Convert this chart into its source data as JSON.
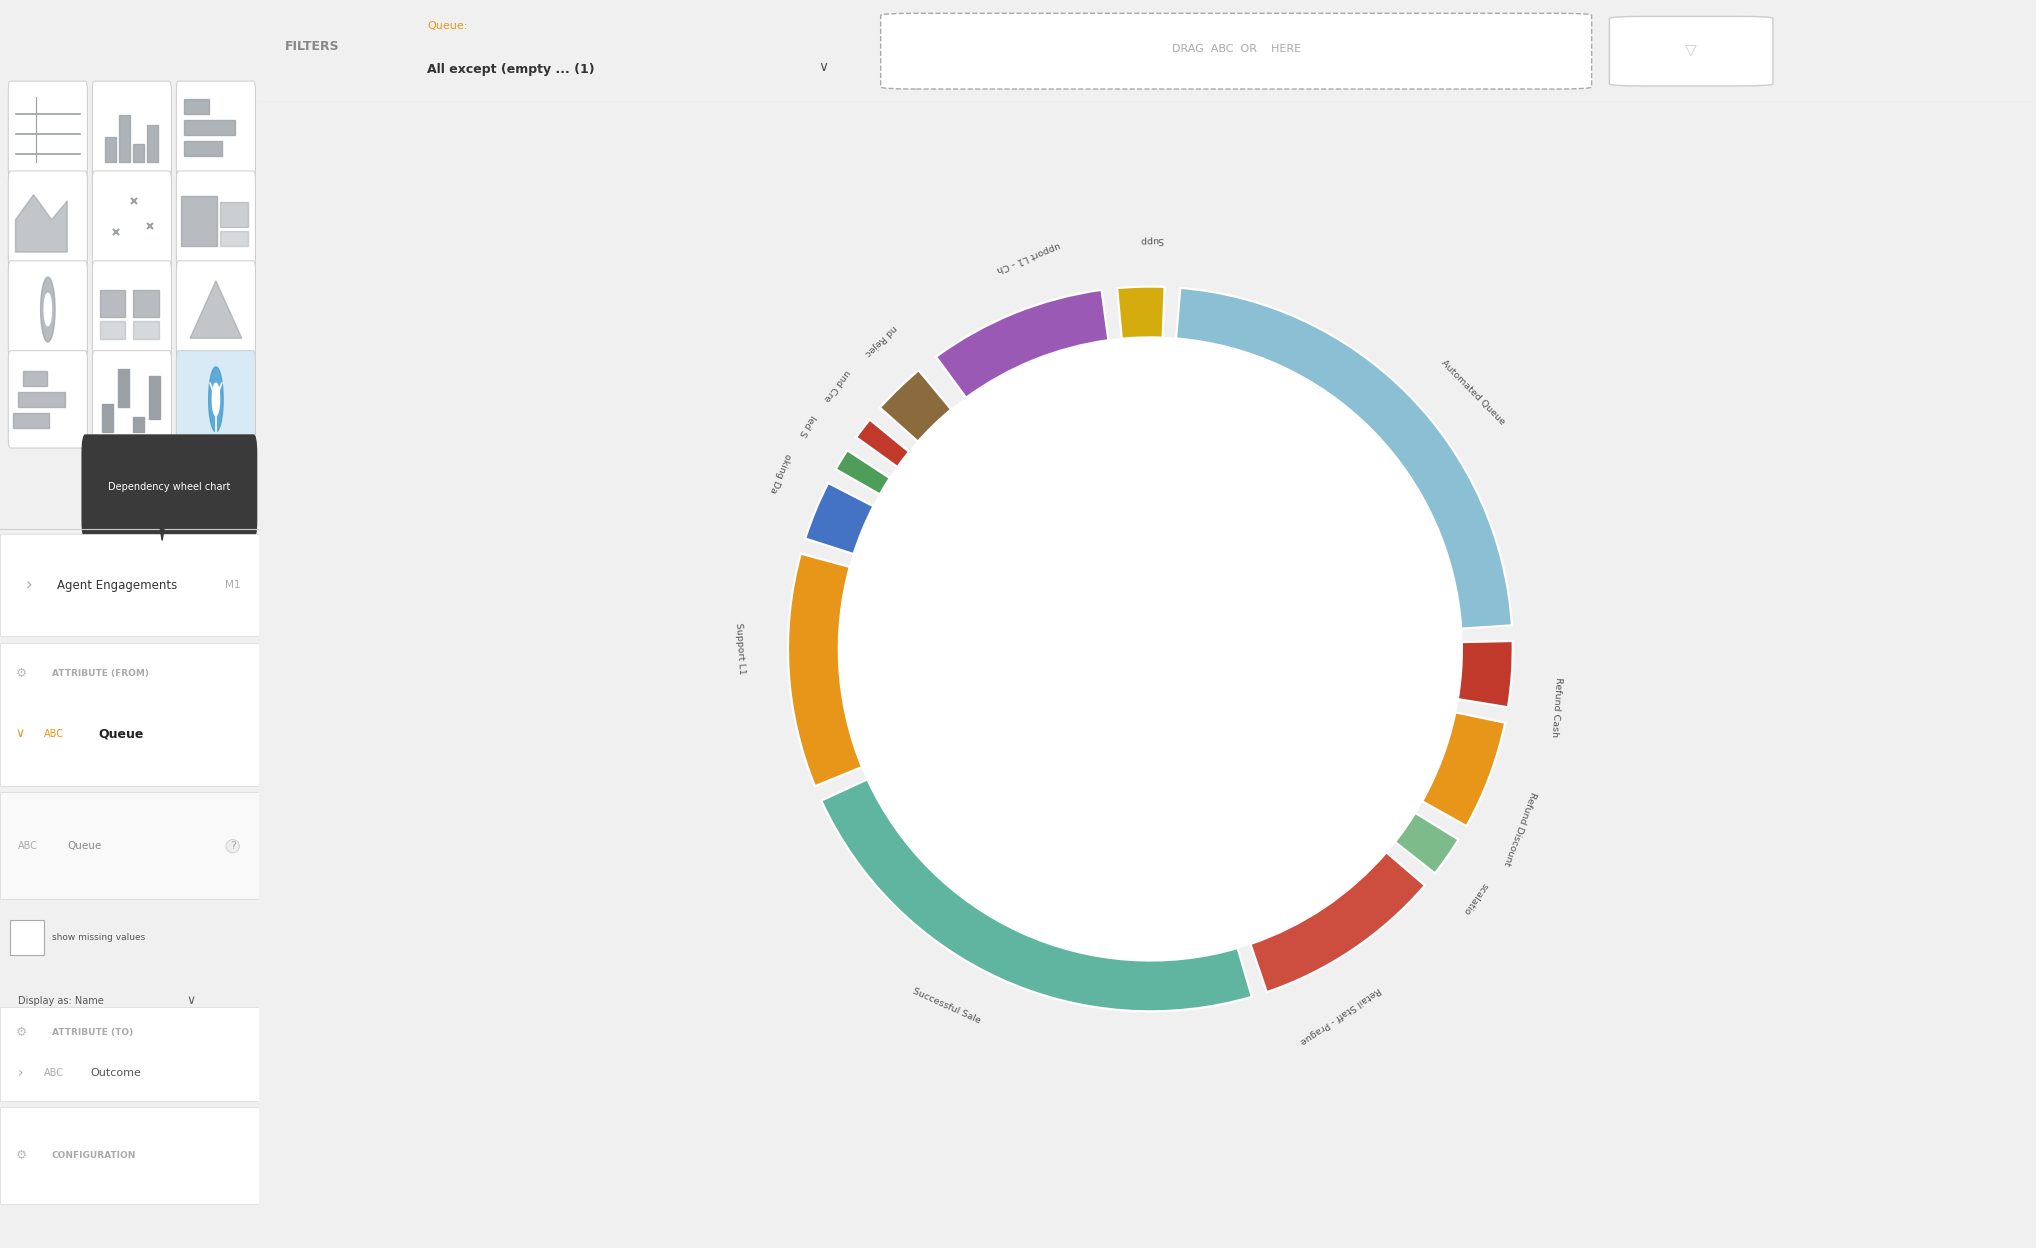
{
  "bg_color": "#f0f0f0",
  "panel_color": "#f0f2f5",
  "white": "#ffffff",
  "border_color": "#dddddd",
  "text_dark": "#333333",
  "text_gray": "#888888",
  "text_light": "#aaaaaa",
  "orange_accent": "#E8961A",
  "tooltip_bg": "#333333",
  "segments": [
    {
      "name": "Supp",
      "color": "#D4AC0D",
      "cs": 354,
      "ce": 363
    },
    {
      "name": "upport L1 - Ch",
      "color": "#9B59B6",
      "cs": 323,
      "ce": 353
    },
    {
      "name": "nd Rejec",
      "color": "#8B6A3E",
      "cs": 311,
      "ce": 321
    },
    {
      "name": "und Cre",
      "color": "#C0392B",
      "cs": 305,
      "ce": 310
    },
    {
      "name": "led S",
      "color": "#4E9E5A",
      "cs": 299,
      "ce": 304
    },
    {
      "name": "oking Da",
      "color": "#4472C4",
      "cs": 287,
      "ce": 298
    },
    {
      "name": "Support L1",
      "color": "#E8961A",
      "cs": 247,
      "ce": 286
    },
    {
      "name": "Successful Sale",
      "color": "#60B5A0",
      "cs": 163,
      "ce": 246
    },
    {
      "name": "Retail Staff - Prague",
      "color": "#CD4D3E",
      "cs": 130,
      "ce": 162
    },
    {
      "name": "scalatio",
      "color": "#7DBB8B",
      "cs": 121,
      "ce": 129
    },
    {
      "name": "Refund Discount",
      "color": "#E8961A",
      "cs": 101,
      "ce": 120
    },
    {
      "name": "Refund Cash",
      "color": "#C0392B",
      "cs": 88,
      "ce": 100
    },
    {
      "name": "Automated Queue",
      "color": "#8BBFD4",
      "cs": 4,
      "ce": 87
    }
  ],
  "chords": [
    {
      "from_cs": 247,
      "from_ce": 286,
      "to_cs": 163,
      "to_ce": 246,
      "color": "#F0C090",
      "alpha": 0.38
    },
    {
      "from_cs": 247,
      "from_ce": 286,
      "to_cs": 4,
      "to_ce": 87,
      "color": "#F0C090",
      "alpha": 0.22
    },
    {
      "from_cs": 247,
      "from_ce": 286,
      "to_cs": 88,
      "to_ce": 100,
      "color": "#F0C090",
      "alpha": 0.1
    },
    {
      "from_cs": 247,
      "from_ce": 286,
      "to_cs": 101,
      "to_ce": 120,
      "color": "#F0C090",
      "alpha": 0.08
    },
    {
      "from_cs": 247,
      "from_ce": 286,
      "to_cs": 130,
      "to_ce": 162,
      "color": "#F0C090",
      "alpha": 0.09
    },
    {
      "from_cs": 247,
      "from_ce": 286,
      "to_cs": 121,
      "to_ce": 129,
      "color": "#F0C090",
      "alpha": 0.06
    },
    {
      "from_cs": 323,
      "from_ce": 353,
      "to_cs": 4,
      "to_ce": 87,
      "color": "#D7B8E8",
      "alpha": 0.3
    },
    {
      "from_cs": 323,
      "from_ce": 353,
      "to_cs": 163,
      "to_ce": 246,
      "color": "#D7B8E8",
      "alpha": 0.1
    },
    {
      "from_cs": 323,
      "from_ce": 353,
      "to_cs": 88,
      "to_ce": 100,
      "color": "#D7B8E8",
      "alpha": 0.06
    },
    {
      "from_cs": 323,
      "from_ce": 353,
      "to_cs": 101,
      "to_ce": 120,
      "color": "#D7B8E8",
      "alpha": 0.06
    },
    {
      "from_cs": 323,
      "from_ce": 353,
      "to_cs": 130,
      "to_ce": 162,
      "color": "#D7B8E8",
      "alpha": 0.05
    },
    {
      "from_cs": 354,
      "from_ce": 363,
      "to_cs": 4,
      "to_ce": 87,
      "color": "#EDE098",
      "alpha": 0.3
    },
    {
      "from_cs": 354,
      "from_ce": 363,
      "to_cs": 163,
      "to_ce": 246,
      "color": "#EDE098",
      "alpha": 0.07
    },
    {
      "from_cs": 354,
      "from_ce": 363,
      "to_cs": 88,
      "to_ce": 100,
      "color": "#EDE098",
      "alpha": 0.05
    },
    {
      "from_cs": 311,
      "from_ce": 321,
      "to_cs": 4,
      "to_ce": 87,
      "color": "#C9A87C",
      "alpha": 0.25
    },
    {
      "from_cs": 311,
      "from_ce": 321,
      "to_cs": 163,
      "to_ce": 246,
      "color": "#C9A87C",
      "alpha": 0.06
    },
    {
      "from_cs": 305,
      "from_ce": 310,
      "to_cs": 4,
      "to_ce": 87,
      "color": "#E89090",
      "alpha": 0.22
    },
    {
      "from_cs": 305,
      "from_ce": 310,
      "to_cs": 163,
      "to_ce": 246,
      "color": "#E89090",
      "alpha": 0.05
    },
    {
      "from_cs": 299,
      "from_ce": 304,
      "to_cs": 4,
      "to_ce": 87,
      "color": "#A8D5A8",
      "alpha": 0.22
    },
    {
      "from_cs": 299,
      "from_ce": 304,
      "to_cs": 163,
      "to_ce": 246,
      "color": "#A8D5A8",
      "alpha": 0.04
    },
    {
      "from_cs": 287,
      "from_ce": 298,
      "to_cs": 4,
      "to_ce": 87,
      "color": "#A0B8E0",
      "alpha": 0.24
    },
    {
      "from_cs": 287,
      "from_ce": 298,
      "to_cs": 163,
      "to_ce": 246,
      "color": "#A0B8E0",
      "alpha": 0.05
    },
    {
      "from_cs": 163,
      "from_ce": 246,
      "to_cs": 4,
      "to_ce": 87,
      "color": "#A8D5CA",
      "alpha": 0.18
    },
    {
      "from_cs": 163,
      "from_ce": 246,
      "to_cs": 101,
      "to_ce": 120,
      "color": "#A8D5CA",
      "alpha": 0.06
    },
    {
      "from_cs": 163,
      "from_ce": 246,
      "to_cs": 130,
      "to_ce": 162,
      "color": "#F4A0A0",
      "alpha": 0.45
    },
    {
      "from_cs": 130,
      "from_ce": 162,
      "to_cs": 4,
      "to_ce": 87,
      "color": "#D09090",
      "alpha": 0.14
    },
    {
      "from_cs": 101,
      "from_ce": 120,
      "to_cs": 4,
      "to_ce": 87,
      "color": "#F0C090",
      "alpha": 0.12
    },
    {
      "from_cs": 121,
      "from_ce": 129,
      "to_cs": 4,
      "to_ce": 87,
      "color": "#B8DDB8",
      "alpha": 0.18
    },
    {
      "from_cs": 88,
      "from_ce": 100,
      "to_cs": 4,
      "to_ce": 87,
      "color": "#D09090",
      "alpha": 0.1
    }
  ],
  "title": "Agent Engagements",
  "filters_label": "FILTERS",
  "queue_label": "Queue:",
  "queue_value": "All except (empty ... (1)",
  "drag_text": "DRAG  ABC  OR    HERE",
  "attribute_from": "ATTRIBUTE (FROM)",
  "attribute_to": "ATTRIBUTE (TO)",
  "configuration": "CONFIGURATION",
  "show_missing": "show missing values",
  "display_as": "Display as: Name",
  "dependency_wheel_tooltip": "Dependency wheel chart"
}
